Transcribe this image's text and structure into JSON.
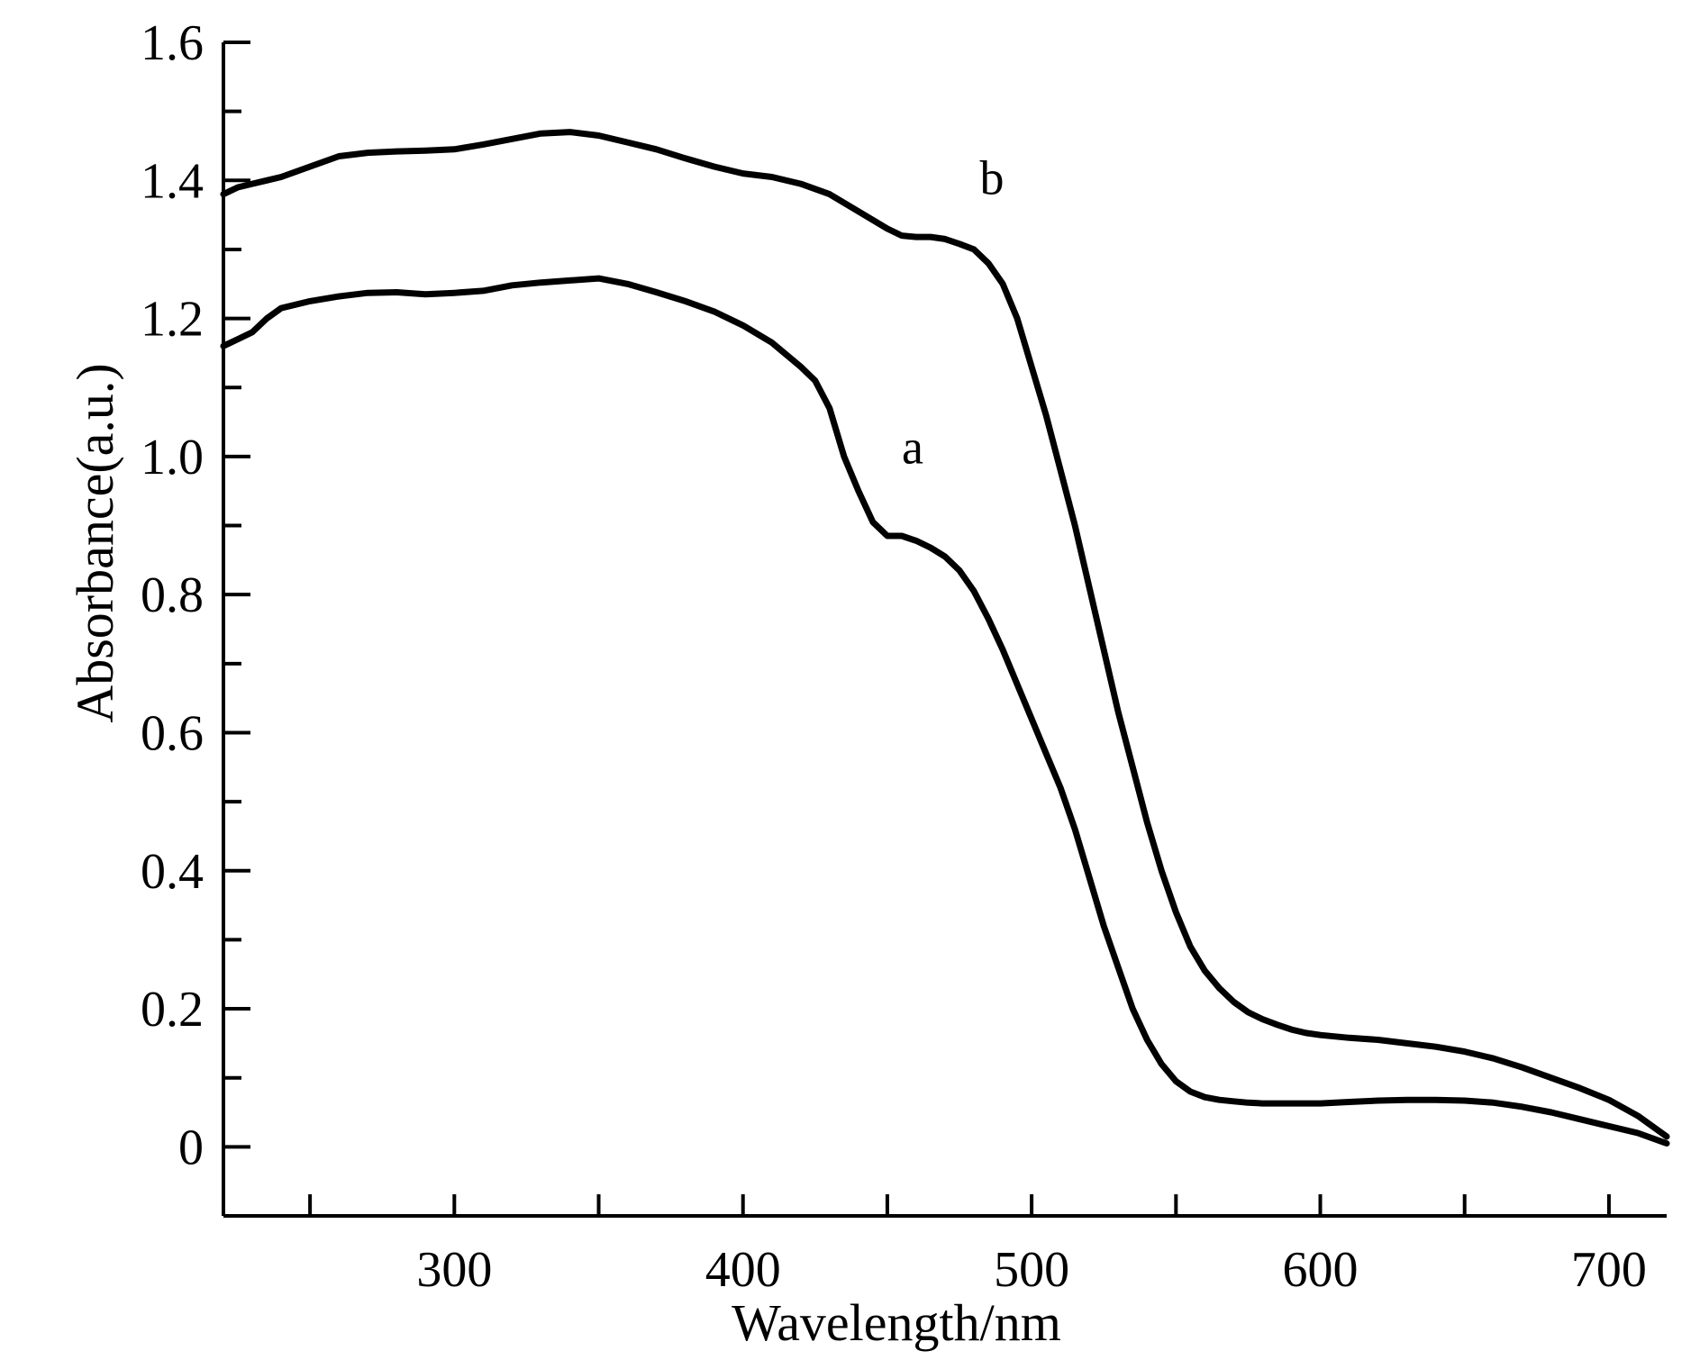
{
  "chart_data": {
    "type": "line",
    "xlabel": "Wavelength/nm",
    "ylabel": "Absorbance(a.u.)",
    "xlim": [
      220,
      720
    ],
    "ylim": [
      -0.1,
      1.6
    ],
    "x_ticks": [
      300,
      400,
      500,
      600,
      700
    ],
    "x_tick_labels": [
      "300",
      "400",
      "500",
      "600",
      "700"
    ],
    "x_minor_ticks": [
      250,
      350,
      450,
      550,
      650
    ],
    "y_ticks": [
      0,
      0.2,
      0.4,
      0.6,
      0.8,
      1.0,
      1.2,
      1.4,
      1.6
    ],
    "y_tick_labels": [
      "0",
      "0.2",
      "0.4",
      "0.6",
      "0.8",
      "1.0",
      "1.2",
      "1.4",
      "1.6"
    ],
    "y_minor_ticks": [
      0.1,
      0.3,
      0.5,
      0.7,
      0.9,
      1.1,
      1.3,
      1.5
    ],
    "grid": false,
    "line_color": "#000000",
    "series": [
      {
        "name": "a",
        "label_at": [
          455,
          0.99
        ],
        "x": [
          220,
          225,
          230,
          235,
          240,
          250,
          260,
          270,
          280,
          290,
          300,
          310,
          320,
          330,
          340,
          350,
          360,
          370,
          380,
          390,
          400,
          410,
          420,
          425,
          430,
          435,
          440,
          445,
          450,
          455,
          460,
          465,
          470,
          475,
          480,
          485,
          490,
          495,
          500,
          505,
          510,
          515,
          520,
          525,
          530,
          535,
          540,
          545,
          550,
          555,
          560,
          565,
          570,
          575,
          580,
          585,
          590,
          595,
          600,
          610,
          620,
          630,
          640,
          650,
          660,
          670,
          680,
          690,
          700,
          710,
          720
        ],
        "y": [
          1.16,
          1.17,
          1.18,
          1.2,
          1.215,
          1.225,
          1.232,
          1.237,
          1.238,
          1.235,
          1.237,
          1.24,
          1.248,
          1.252,
          1.255,
          1.258,
          1.25,
          1.238,
          1.225,
          1.21,
          1.19,
          1.165,
          1.13,
          1.11,
          1.07,
          1.0,
          0.95,
          0.905,
          0.885,
          0.885,
          0.878,
          0.868,
          0.855,
          0.835,
          0.805,
          0.765,
          0.72,
          0.67,
          0.62,
          0.57,
          0.52,
          0.46,
          0.39,
          0.32,
          0.26,
          0.2,
          0.155,
          0.12,
          0.095,
          0.08,
          0.072,
          0.068,
          0.066,
          0.064,
          0.063,
          0.063,
          0.063,
          0.063,
          0.063,
          0.065,
          0.067,
          0.068,
          0.068,
          0.067,
          0.064,
          0.058,
          0.05,
          0.04,
          0.03,
          0.02,
          0.005
        ]
      },
      {
        "name": "b",
        "label_at": [
          482,
          1.38
        ],
        "x": [
          220,
          225,
          230,
          235,
          240,
          250,
          260,
          270,
          280,
          290,
          300,
          310,
          320,
          330,
          340,
          350,
          360,
          370,
          380,
          390,
          400,
          410,
          420,
          430,
          440,
          450,
          455,
          460,
          465,
          470,
          475,
          480,
          485,
          490,
          495,
          500,
          505,
          510,
          515,
          520,
          525,
          530,
          535,
          540,
          545,
          550,
          555,
          560,
          565,
          570,
          575,
          580,
          585,
          590,
          595,
          600,
          610,
          620,
          630,
          640,
          650,
          660,
          670,
          680,
          690,
          700,
          710,
          720
        ],
        "y": [
          1.38,
          1.39,
          1.395,
          1.4,
          1.405,
          1.42,
          1.435,
          1.44,
          1.442,
          1.443,
          1.445,
          1.452,
          1.46,
          1.468,
          1.47,
          1.465,
          1.455,
          1.445,
          1.432,
          1.42,
          1.41,
          1.405,
          1.395,
          1.38,
          1.355,
          1.33,
          1.32,
          1.318,
          1.318,
          1.315,
          1.308,
          1.3,
          1.28,
          1.25,
          1.2,
          1.13,
          1.06,
          0.98,
          0.9,
          0.81,
          0.72,
          0.63,
          0.55,
          0.47,
          0.4,
          0.34,
          0.29,
          0.255,
          0.23,
          0.21,
          0.195,
          0.185,
          0.177,
          0.17,
          0.165,
          0.162,
          0.158,
          0.155,
          0.15,
          0.145,
          0.138,
          0.128,
          0.115,
          0.1,
          0.085,
          0.068,
          0.045,
          0.015
        ]
      }
    ]
  }
}
